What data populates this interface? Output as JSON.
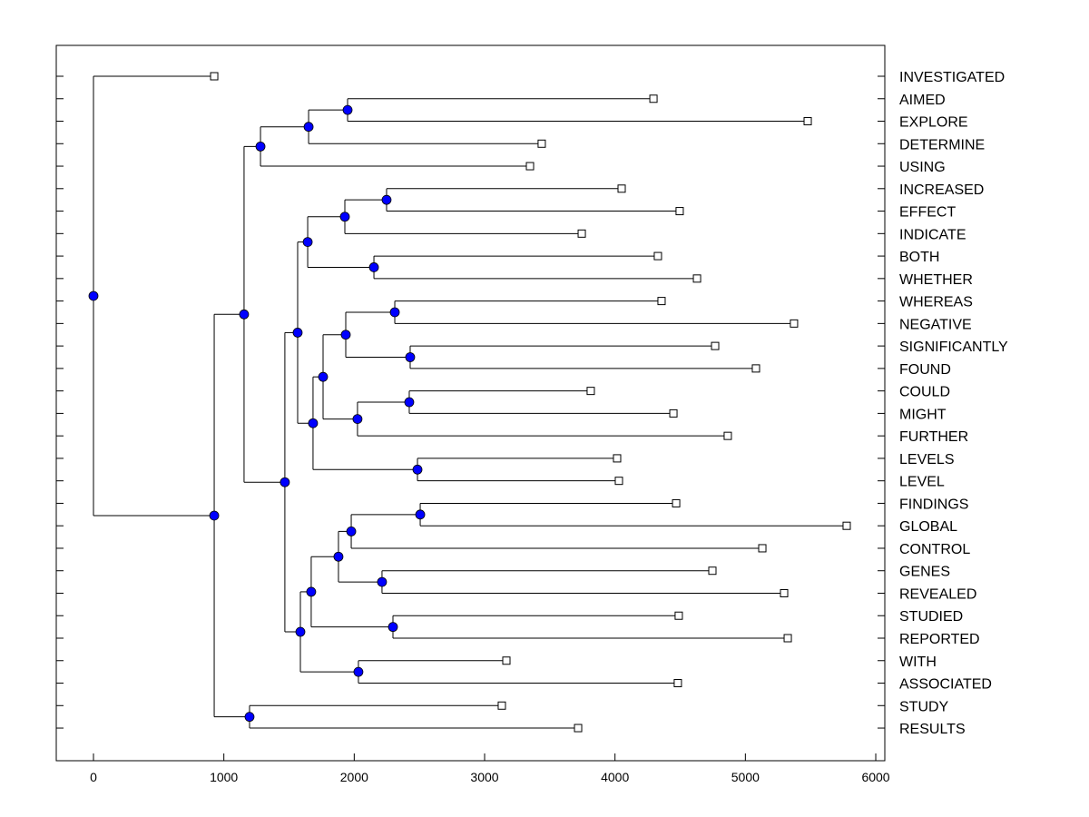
{
  "chart_data": {
    "type": "dendrogram",
    "title": "",
    "xlabel": "",
    "ylabel": "",
    "xlim": [
      -290,
      6020
    ],
    "xticks": [
      0,
      1000,
      2000,
      3000,
      4000,
      5000,
      6000
    ],
    "xtick_labels": [
      "0",
      "1000",
      "2000",
      "3000",
      "4000",
      "5000",
      "6000"
    ],
    "grid": false,
    "leaves": [
      {
        "label": "INVESTIGATED",
        "value": 926
      },
      {
        "label": "AIMED",
        "value": 4295
      },
      {
        "label": "EXPLORE",
        "value": 5478
      },
      {
        "label": "DETERMINE",
        "value": 3438
      },
      {
        "label": "USING",
        "value": 3348
      },
      {
        "label": "INCREASED",
        "value": 4051
      },
      {
        "label": "EFFECT",
        "value": 4496
      },
      {
        "label": "INDICATE",
        "value": 3745
      },
      {
        "label": "BOTH",
        "value": 4329
      },
      {
        "label": "WHETHER",
        "value": 4629
      },
      {
        "label": "WHEREAS",
        "value": 4357
      },
      {
        "label": "NEGATIVE",
        "value": 5373
      },
      {
        "label": "SIGNIFICANTLY",
        "value": 4768
      },
      {
        "label": "FOUND",
        "value": 5081
      },
      {
        "label": "COULD",
        "value": 3814
      },
      {
        "label": "MIGHT",
        "value": 4448
      },
      {
        "label": "FURTHER",
        "value": 4865
      },
      {
        "label": "LEVELS",
        "value": 4016
      },
      {
        "label": "LEVEL",
        "value": 4030
      },
      {
        "label": "FINDINGS",
        "value": 4469
      },
      {
        "label": "GLOBAL",
        "value": 5777
      },
      {
        "label": "CONTROL",
        "value": 5130
      },
      {
        "label": "GENES",
        "value": 4747
      },
      {
        "label": "REVEALED",
        "value": 5297
      },
      {
        "label": "STUDIED",
        "value": 4489
      },
      {
        "label": "REPORTED",
        "value": 5325
      },
      {
        "label": "WITH",
        "value": 3167
      },
      {
        "label": "ASSOCIATED",
        "value": 4482
      },
      {
        "label": "STUDY",
        "value": 3132
      },
      {
        "label": "RESULTS",
        "value": 3717
      }
    ],
    "tree": {
      "h": 0,
      "c": [
        0,
        {
          "h": 926,
          "c": [
            {
              "h": 1155,
              "c": [
                {
                  "h": 1281,
                  "c": [
                    {
                      "h": 1650,
                      "c": [
                        {
                          "h": 1949,
                          "c": [
                            1,
                            2
                          ]
                        },
                        3
                      ]
                    },
                    4
                  ]
                },
                {
                  "h": 1468,
                  "c": [
                    {
                      "h": 1566,
                      "c": [
                        {
                          "h": 1643,
                          "c": [
                            {
                              "h": 1928,
                              "c": [
                                {
                                  "h": 2248,
                                  "c": [
                                    5,
                                    6
                                  ]
                                },
                                7
                              ]
                            },
                            {
                              "h": 2151,
                              "c": [
                                8,
                                9
                              ]
                            }
                          ]
                        },
                        {
                          "h": 1684,
                          "c": [
                            {
                              "h": 1761,
                              "c": [
                                {
                                  "h": 1935,
                                  "c": [
                                    {
                                      "h": 2311,
                                      "c": [
                                        10,
                                        11
                                      ]
                                    },
                                    {
                                      "h": 2429,
                                      "c": [
                                        12,
                                        13
                                      ]
                                    }
                                  ]
                                },
                                {
                                  "h": 2025,
                                  "c": [
                                    {
                                      "h": 2422,
                                      "c": [
                                        14,
                                        15
                                      ]
                                    },
                                    16
                                  ]
                                }
                              ]
                            },
                            {
                              "h": 2485,
                              "c": [
                                17,
                                18
                              ]
                            }
                          ]
                        }
                      ]
                    },
                    {
                      "h": 1587,
                      "c": [
                        {
                          "h": 1670,
                          "c": [
                            {
                              "h": 1879,
                              "c": [
                                {
                                  "h": 1977,
                                  "c": [
                                    {
                                      "h": 2506,
                                      "c": [
                                        19,
                                        20
                                      ]
                                    },
                                    21
                                  ]
                                },
                                {
                                  "h": 2213,
                                  "c": [
                                    22,
                                    23
                                  ]
                                }
                              ]
                            },
                            {
                              "h": 2297,
                              "c": [
                                24,
                                25
                              ]
                            }
                          ]
                        },
                        {
                          "h": 2032,
                          "c": [
                            26,
                            27
                          ]
                        }
                      ]
                    }
                  ]
                }
              ]
            },
            {
              "h": 1197,
              "c": [
                28,
                29
              ]
            }
          ]
        }
      ]
    },
    "node_color": "#0000ff",
    "leaf_marker": "open-square"
  }
}
